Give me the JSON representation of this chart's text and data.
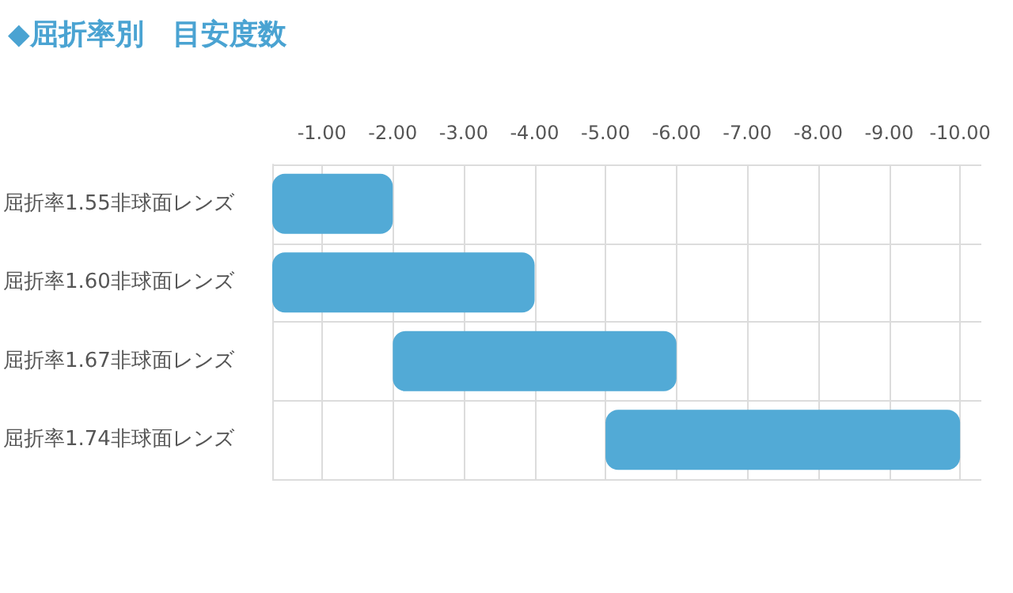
{
  "chart_data": {
    "type": "bar",
    "orientation": "horizontal",
    "title": "◆屈折率別　目安度数",
    "categories": [
      "屈折率1.55非球面レンズ",
      "屈折率1.60非球面レンズ",
      "屈折率1.67非球面レンズ",
      "屈折率1.74非球面レンズ"
    ],
    "base": [
      -0.3,
      -0.3,
      -2,
      -5
    ],
    "values": [
      -1.7,
      -3.7,
      -4,
      -5
    ],
    "color": "#52aad6",
    "xlim": [
      -0.3,
      -10.3
    ],
    "xticks": [
      {
        "value": -1,
        "label": "-1.00"
      },
      {
        "value": -2,
        "label": "-2.00"
      },
      {
        "value": -3,
        "label": "-3.00"
      },
      {
        "value": -4,
        "label": "-4.00"
      },
      {
        "value": -5,
        "label": "-5.00"
      },
      {
        "value": -6,
        "label": "-6.00"
      },
      {
        "value": -7,
        "label": "-7.00"
      },
      {
        "value": -8,
        "label": "-8.00"
      },
      {
        "value": -9,
        "label": "-9.00"
      },
      {
        "value": -10,
        "label": "-10.00"
      }
    ],
    "grid": true
  }
}
